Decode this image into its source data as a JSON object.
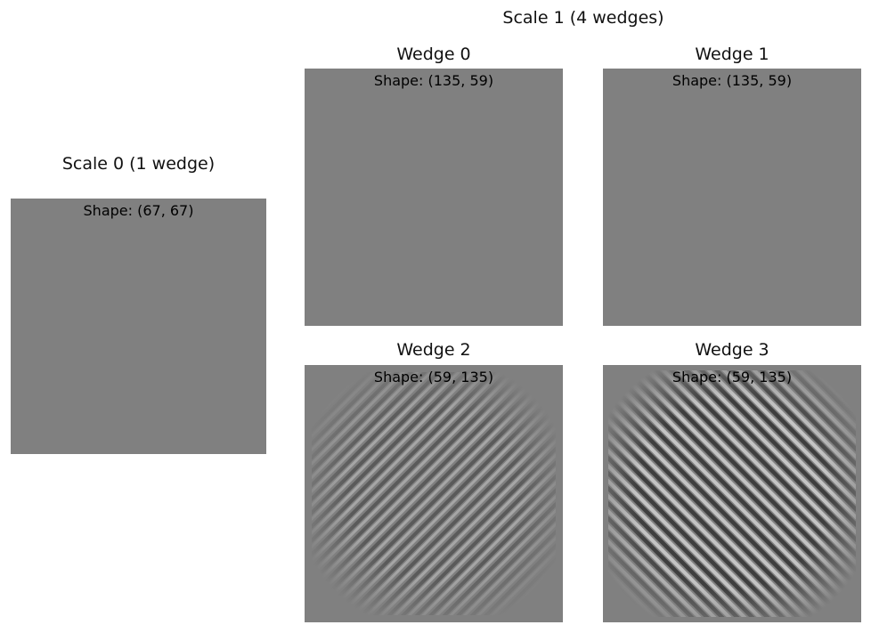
{
  "scale1_title": "Scale 1 (4 wedges)",
  "scale0": {
    "title": "Scale 0 (1 wedge)",
    "shape": "Shape: (67, 67)"
  },
  "wedges": [
    {
      "title": "Wedge 0",
      "shape": "Shape: (135, 59)",
      "pattern": "flat"
    },
    {
      "title": "Wedge 1",
      "shape": "Shape: (135, 59)",
      "pattern": "flat"
    },
    {
      "title": "Wedge 2",
      "shape": "Shape: (59, 135)",
      "pattern": "diagonal-stripes-rising",
      "contrast": "medium"
    },
    {
      "title": "Wedge 3",
      "shape": "Shape: (59, 135)",
      "pattern": "diagonal-stripes-falling",
      "contrast": "high"
    }
  ],
  "colors": {
    "panel_gray": "#808080",
    "stripe_dark": "#4a4a4a",
    "stripe_light": "#b8b8b8"
  }
}
